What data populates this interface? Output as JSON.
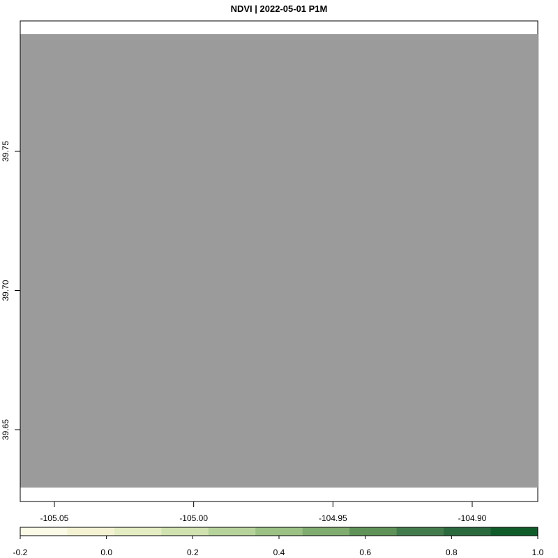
{
  "title": "NDVI | 2022-05-01 P1M",
  "map": {
    "no_data_color": "#9b9b9b",
    "x_ticks": [
      {
        "value": -105.05,
        "label": "-105.05"
      },
      {
        "value": -105.0,
        "label": "-105.00"
      },
      {
        "value": -104.95,
        "label": "-104.95"
      },
      {
        "value": -104.9,
        "label": "-104.90"
      }
    ],
    "y_ticks": [
      {
        "value": 39.75,
        "label": "39.75"
      },
      {
        "value": 39.7,
        "label": "39.70"
      },
      {
        "value": 39.65,
        "label": "39.65"
      }
    ]
  },
  "legend": {
    "ticks": [
      {
        "value": -0.2,
        "label": "-0.2"
      },
      {
        "value": 0.0,
        "label": "0.0"
      },
      {
        "value": 0.2,
        "label": "0.2"
      },
      {
        "value": 0.4,
        "label": "0.4"
      },
      {
        "value": 0.6,
        "label": "0.6"
      },
      {
        "value": 0.8,
        "label": "0.8"
      },
      {
        "value": 1.0,
        "label": "1.0"
      }
    ],
    "colors": [
      "#fafae6",
      "#f3f2d3",
      "#e4ecc3",
      "#d0e2b0",
      "#b7d39c",
      "#9cc184",
      "#80ac70",
      "#5f9259",
      "#437c4c",
      "#2a6a3c",
      "#0f5c2a"
    ]
  }
}
